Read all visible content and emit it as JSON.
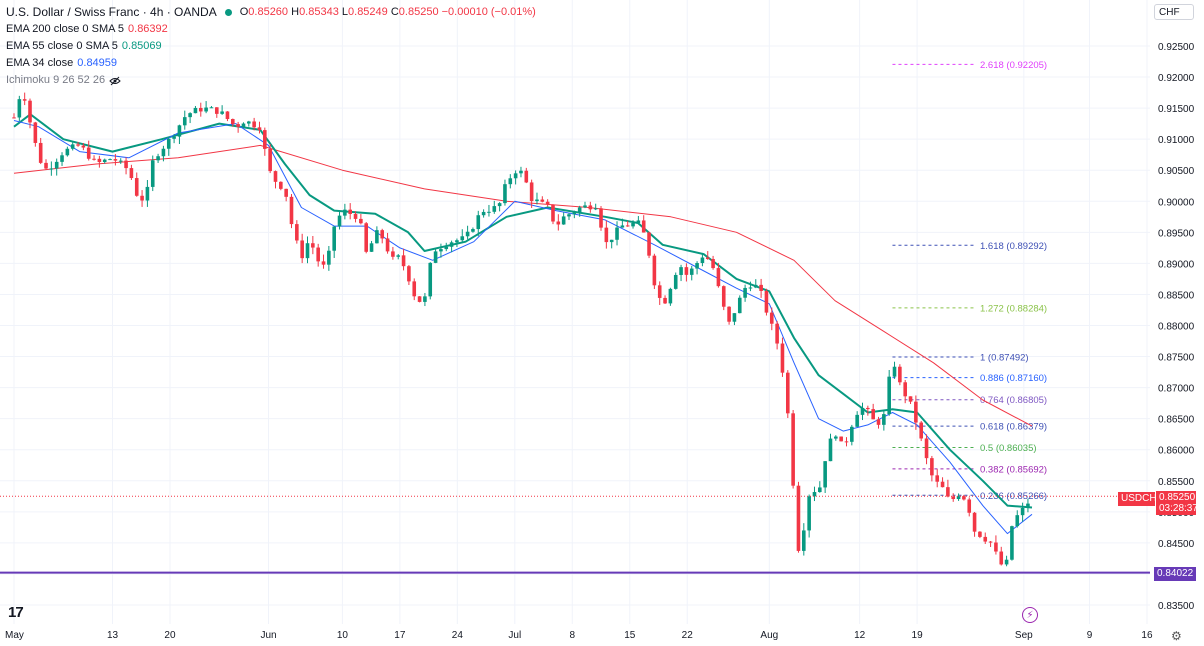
{
  "header": {
    "symbol_title": "U.S. Dollar / Swiss Franc · 4h · OANDA",
    "ohlc": {
      "o_label": "O",
      "o": "0.85260",
      "h_label": "H",
      "h": "0.85343",
      "l_label": "L",
      "l": "0.85249",
      "c_label": "C",
      "c": "0.85250",
      "change": "−0.00010 (−0.01%)"
    },
    "indicators": [
      {
        "label": "EMA 200 close 0 SMA 5",
        "value": "0.86392",
        "color": "#f23645"
      },
      {
        "label": "EMA 55 close 0 SMA 5",
        "value": "0.85069",
        "color": "#089981"
      },
      {
        "label": "EMA 34 close",
        "value": "0.84959",
        "color": "#2962ff"
      },
      {
        "label": "Ichimoku 9 26 52 26",
        "value": "",
        "color": "#787b86"
      }
    ]
  },
  "currency": "CHF",
  "logo_text": "17",
  "price_tags": {
    "symbol": "USDCHF",
    "last": "0.85250",
    "countdown": "03:28:37",
    "support": "0.84022"
  },
  "colors": {
    "up": "#089981",
    "down": "#f23645",
    "ema200": "#f23645",
    "ema55": "#089981",
    "ema34": "#2962ff",
    "support": "#673ab7"
  },
  "chart_data": {
    "type": "candlestick",
    "ylim": [
      0.8325,
      0.9275
    ],
    "y_ticks": [
      "0.92500",
      "0.92000",
      "0.91500",
      "0.91000",
      "0.90500",
      "0.90000",
      "0.89500",
      "0.89000",
      "0.88500",
      "0.88000",
      "0.87500",
      "0.87000",
      "0.86500",
      "0.86000",
      "0.85500",
      "0.85000",
      "0.84500",
      "0.84000",
      "0.83500"
    ],
    "x_ticks": [
      {
        "label": "May",
        "day": 0
      },
      {
        "label": "13",
        "day": 12
      },
      {
        "label": "20",
        "day": 19
      },
      {
        "label": "Jun",
        "day": 31
      },
      {
        "label": "10",
        "day": 40
      },
      {
        "label": "17",
        "day": 47
      },
      {
        "label": "24",
        "day": 54
      },
      {
        "label": "Jul",
        "day": 61
      },
      {
        "label": "8",
        "day": 68
      },
      {
        "label": "15",
        "day": 75
      },
      {
        "label": "22",
        "day": 82
      },
      {
        "label": "Aug",
        "day": 92
      },
      {
        "label": "12",
        "day": 103
      },
      {
        "label": "19",
        "day": 110
      },
      {
        "label": "Sep",
        "day": 123
      },
      {
        "label": "9",
        "day": 131
      },
      {
        "label": "16",
        "day": 138
      }
    ],
    "price_path": [
      {
        "day": 0,
        "price": 0.9135
      },
      {
        "day": 1,
        "price": 0.9185
      },
      {
        "day": 2,
        "price": 0.9125
      },
      {
        "day": 3,
        "price": 0.907
      },
      {
        "day": 4,
        "price": 0.905
      },
      {
        "day": 6,
        "price": 0.908
      },
      {
        "day": 8,
        "price": 0.909
      },
      {
        "day": 10,
        "price": 0.906
      },
      {
        "day": 12,
        "price": 0.907
      },
      {
        "day": 14,
        "price": 0.905
      },
      {
        "day": 15,
        "price": 0.901
      },
      {
        "day": 16,
        "price": 0.9
      },
      {
        "day": 17,
        "price": 0.907
      },
      {
        "day": 19,
        "price": 0.91
      },
      {
        "day": 21,
        "price": 0.914
      },
      {
        "day": 23,
        "price": 0.915
      },
      {
        "day": 25,
        "price": 0.9145
      },
      {
        "day": 27,
        "price": 0.912
      },
      {
        "day": 28,
        "price": 0.913
      },
      {
        "day": 30,
        "price": 0.912
      },
      {
        "day": 31,
        "price": 0.905
      },
      {
        "day": 32,
        "price": 0.903
      },
      {
        "day": 33,
        "price": 0.902
      },
      {
        "day": 34,
        "price": 0.895
      },
      {
        "day": 35,
        "price": 0.891
      },
      {
        "day": 36,
        "price": 0.894
      },
      {
        "day": 37,
        "price": 0.8905
      },
      {
        "day": 38,
        "price": 0.889
      },
      {
        "day": 39,
        "price": 0.896
      },
      {
        "day": 40,
        "price": 0.8985
      },
      {
        "day": 42,
        "price": 0.8975
      },
      {
        "day": 43,
        "price": 0.891
      },
      {
        "day": 44,
        "price": 0.895
      },
      {
        "day": 45,
        "price": 0.894
      },
      {
        "day": 46,
        "price": 0.8905
      },
      {
        "day": 47,
        "price": 0.891
      },
      {
        "day": 48,
        "price": 0.888
      },
      {
        "day": 49,
        "price": 0.884
      },
      {
        "day": 50,
        "price": 0.884
      },
      {
        "day": 51,
        "price": 0.892
      },
      {
        "day": 53,
        "price": 0.8935
      },
      {
        "day": 55,
        "price": 0.894
      },
      {
        "day": 57,
        "price": 0.8985
      },
      {
        "day": 59,
        "price": 0.899
      },
      {
        "day": 60,
        "price": 0.903
      },
      {
        "day": 61,
        "price": 0.905
      },
      {
        "day": 62,
        "price": 0.9045
      },
      {
        "day": 63,
        "price": 0.9005
      },
      {
        "day": 65,
        "price": 0.899
      },
      {
        "day": 66,
        "price": 0.896
      },
      {
        "day": 67,
        "price": 0.8975
      },
      {
        "day": 69,
        "price": 0.899
      },
      {
        "day": 71,
        "price": 0.8995
      },
      {
        "day": 72,
        "price": 0.893
      },
      {
        "day": 74,
        "price": 0.896
      },
      {
        "day": 76,
        "price": 0.8965
      },
      {
        "day": 77,
        "price": 0.894
      },
      {
        "day": 78,
        "price": 0.887
      },
      {
        "day": 79,
        "price": 0.883
      },
      {
        "day": 80,
        "price": 0.8865
      },
      {
        "day": 81,
        "price": 0.89
      },
      {
        "day": 82,
        "price": 0.888
      },
      {
        "day": 84,
        "price": 0.8915
      },
      {
        "day": 85,
        "price": 0.89
      },
      {
        "day": 86,
        "price": 0.885
      },
      {
        "day": 87,
        "price": 0.88
      },
      {
        "day": 88,
        "price": 0.883
      },
      {
        "day": 89,
        "price": 0.886
      },
      {
        "day": 90,
        "price": 0.887
      },
      {
        "day": 91,
        "price": 0.885
      },
      {
        "day": 92,
        "price": 0.881
      },
      {
        "day": 93,
        "price": 0.877
      },
      {
        "day": 94,
        "price": 0.87
      },
      {
        "day": 95,
        "price": 0.853
      },
      {
        "day": 95.5,
        "price": 0.844
      },
      {
        "day": 96,
        "price": 0.846
      },
      {
        "day": 97,
        "price": 0.854
      },
      {
        "day": 98,
        "price": 0.853
      },
      {
        "day": 99,
        "price": 0.86
      },
      {
        "day": 100,
        "price": 0.863
      },
      {
        "day": 101,
        "price": 0.86
      },
      {
        "day": 102,
        "price": 0.864
      },
      {
        "day": 103,
        "price": 0.867
      },
      {
        "day": 104,
        "price": 0.866
      },
      {
        "day": 105,
        "price": 0.864
      },
      {
        "day": 106,
        "price": 0.8655
      },
      {
        "day": 107,
        "price": 0.875
      },
      {
        "day": 108,
        "price": 0.87
      },
      {
        "day": 109,
        "price": 0.868
      },
      {
        "day": 110,
        "price": 0.864
      },
      {
        "day": 111,
        "price": 0.859
      },
      {
        "day": 112,
        "price": 0.855
      },
      {
        "day": 113,
        "price": 0.854
      },
      {
        "day": 114,
        "price": 0.8515
      },
      {
        "day": 115,
        "price": 0.853
      },
      {
        "day": 116,
        "price": 0.852
      },
      {
        "day": 117,
        "price": 0.847
      },
      {
        "day": 118,
        "price": 0.846
      },
      {
        "day": 119,
        "price": 0.845
      },
      {
        "day": 120,
        "price": 0.842
      },
      {
        "day": 120.8,
        "price": 0.8405
      },
      {
        "day": 121.3,
        "price": 0.847
      },
      {
        "day": 122,
        "price": 0.849
      },
      {
        "day": 123,
        "price": 0.8505
      },
      {
        "day": 124,
        "price": 0.8525
      }
    ],
    "ema200_path": [
      {
        "day": 0,
        "price": 0.9045
      },
      {
        "day": 10,
        "price": 0.906
      },
      {
        "day": 20,
        "price": 0.907
      },
      {
        "day": 30,
        "price": 0.909
      },
      {
        "day": 40,
        "price": 0.905
      },
      {
        "day": 50,
        "price": 0.902
      },
      {
        "day": 60,
        "price": 0.9
      },
      {
        "day": 70,
        "price": 0.899
      },
      {
        "day": 80,
        "price": 0.8975
      },
      {
        "day": 88,
        "price": 0.895
      },
      {
        "day": 95,
        "price": 0.8905
      },
      {
        "day": 100,
        "price": 0.884
      },
      {
        "day": 106,
        "price": 0.879
      },
      {
        "day": 112,
        "price": 0.874
      },
      {
        "day": 118,
        "price": 0.868
      },
      {
        "day": 124,
        "price": 0.8638
      }
    ],
    "ema55_path": [
      {
        "day": 0,
        "price": 0.912
      },
      {
        "day": 2,
        "price": 0.914
      },
      {
        "day": 6,
        "price": 0.91
      },
      {
        "day": 12,
        "price": 0.908
      },
      {
        "day": 18,
        "price": 0.91
      },
      {
        "day": 25,
        "price": 0.9125
      },
      {
        "day": 30,
        "price": 0.9115
      },
      {
        "day": 33,
        "price": 0.906
      },
      {
        "day": 36,
        "price": 0.901
      },
      {
        "day": 39,
        "price": 0.8985
      },
      {
        "day": 44,
        "price": 0.898
      },
      {
        "day": 48,
        "price": 0.895
      },
      {
        "day": 50,
        "price": 0.892
      },
      {
        "day": 55,
        "price": 0.8935
      },
      {
        "day": 60,
        "price": 0.8975
      },
      {
        "day": 65,
        "price": 0.899
      },
      {
        "day": 72,
        "price": 0.8975
      },
      {
        "day": 76,
        "price": 0.8965
      },
      {
        "day": 79,
        "price": 0.893
      },
      {
        "day": 84,
        "price": 0.8915
      },
      {
        "day": 88,
        "price": 0.8875
      },
      {
        "day": 92,
        "price": 0.8855
      },
      {
        "day": 95,
        "price": 0.878
      },
      {
        "day": 98,
        "price": 0.872
      },
      {
        "day": 101,
        "price": 0.869
      },
      {
        "day": 104,
        "price": 0.866
      },
      {
        "day": 107,
        "price": 0.8665
      },
      {
        "day": 110,
        "price": 0.866
      },
      {
        "day": 114,
        "price": 0.86
      },
      {
        "day": 118,
        "price": 0.855
      },
      {
        "day": 121,
        "price": 0.851
      },
      {
        "day": 124,
        "price": 0.8507
      }
    ],
    "ema34_path": [
      {
        "day": 0,
        "price": 0.913
      },
      {
        "day": 3,
        "price": 0.912
      },
      {
        "day": 8,
        "price": 0.908
      },
      {
        "day": 14,
        "price": 0.907
      },
      {
        "day": 20,
        "price": 0.911
      },
      {
        "day": 27,
        "price": 0.9125
      },
      {
        "day": 31,
        "price": 0.909
      },
      {
        "day": 35,
        "price": 0.899
      },
      {
        "day": 39,
        "price": 0.896
      },
      {
        "day": 43,
        "price": 0.896
      },
      {
        "day": 47,
        "price": 0.8925
      },
      {
        "day": 51,
        "price": 0.8905
      },
      {
        "day": 56,
        "price": 0.8935
      },
      {
        "day": 61,
        "price": 0.9
      },
      {
        "day": 66,
        "price": 0.8985
      },
      {
        "day": 72,
        "price": 0.897
      },
      {
        "day": 78,
        "price": 0.893
      },
      {
        "day": 83,
        "price": 0.8895
      },
      {
        "day": 88,
        "price": 0.886
      },
      {
        "day": 92,
        "price": 0.8835
      },
      {
        "day": 95,
        "price": 0.874
      },
      {
        "day": 98,
        "price": 0.865
      },
      {
        "day": 101,
        "price": 0.863
      },
      {
        "day": 104,
        "price": 0.864
      },
      {
        "day": 107,
        "price": 0.866
      },
      {
        "day": 110,
        "price": 0.864
      },
      {
        "day": 114,
        "price": 0.858
      },
      {
        "day": 118,
        "price": 0.851
      },
      {
        "day": 121,
        "price": 0.8465
      },
      {
        "day": 124,
        "price": 0.8496
      }
    ],
    "fibonacci": {
      "start_day": 107,
      "end_day": 124,
      "levels": [
        {
          "label": "2.618 (0.92205)",
          "price": 0.92205,
          "color": "#e040fb"
        },
        {
          "label": "1.618 (0.89292)",
          "price": 0.89292,
          "color": "#3f51b5"
        },
        {
          "label": "1.272 (0.88284)",
          "price": 0.88284,
          "color": "#8bc34a"
        },
        {
          "label": "1 (0.87492)",
          "price": 0.87492,
          "color": "#3f51b5"
        },
        {
          "label": "0.886 (0.87160)",
          "price": 0.8716,
          "color": "#2962ff"
        },
        {
          "label": "0.764 (0.86805)",
          "price": 0.86805,
          "color": "#7e57c2"
        },
        {
          "label": "0.618 (0.86379)",
          "price": 0.86379,
          "color": "#3f51b5"
        },
        {
          "label": "0.5 (0.86035)",
          "price": 0.86035,
          "color": "#4caf50"
        },
        {
          "label": "0.382 (0.85692)",
          "price": 0.85692,
          "color": "#9c27b0"
        },
        {
          "label": "0.236 (0.85266)",
          "price": 0.85266,
          "color": "#3f51b5"
        }
      ]
    },
    "support_line": 0.84022,
    "last_price": 0.8525
  }
}
